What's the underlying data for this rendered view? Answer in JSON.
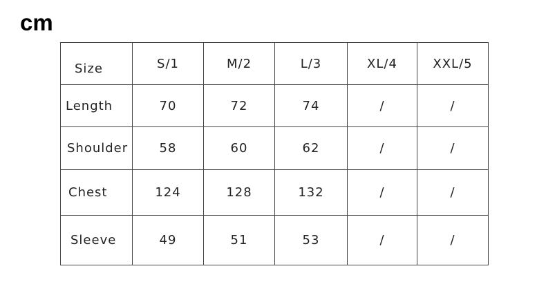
{
  "unit": "cm",
  "table": {
    "headers": [
      "Size",
      "S/1",
      "M/2",
      "L/3",
      "XL/4",
      "XXL/5"
    ],
    "rows": [
      {
        "label": "Length",
        "values": [
          "70",
          "72",
          "74",
          "/",
          "/"
        ]
      },
      {
        "label": "Shoulder",
        "values": [
          "58",
          "60",
          "62",
          "/",
          "/"
        ]
      },
      {
        "label": "Chest",
        "values": [
          "124",
          "128",
          "132",
          "/",
          "/"
        ]
      },
      {
        "label": "Sleeve",
        "values": [
          "49",
          "51",
          "53",
          "/",
          "/"
        ]
      }
    ]
  }
}
